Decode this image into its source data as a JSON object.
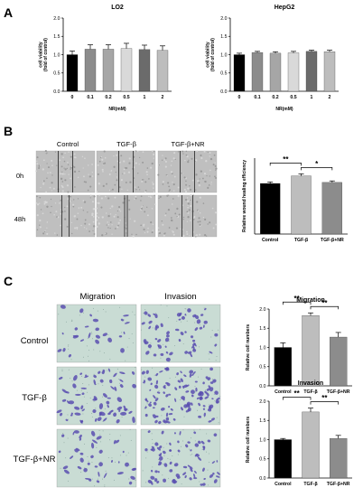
{
  "figure": {
    "panels": [
      {
        "letter": "A"
      },
      {
        "letter": "B",
        "column_headers": [
          "Control",
          "TGF-β",
          "TGF-β+NR"
        ],
        "row_labels": [
          "0h",
          "48h"
        ]
      },
      {
        "letter": "C",
        "column_headers": [
          "Migration",
          "Invasion"
        ],
        "row_labels": [
          "Control",
          "TGF-β",
          "TGF-β+NR"
        ]
      }
    ],
    "colors": {
      "black": "#000000",
      "light_gray": "#bdbdbd",
      "mid_gray": "#8c8c8c",
      "dark_gray": "#6b6b6b",
      "lighter_gray": "#d9d9d9",
      "silver": "#a6a6a6",
      "stain_bg": "#c9dcd4",
      "stain_cell": "#5a4fb0",
      "wound_bg": "#bfbfbf"
    }
  },
  "chart_data": [
    {
      "id": "lo2",
      "type": "bar",
      "title": "LO2",
      "xlabel": "NR(mM)",
      "ylabel": "cell viability (fold of control)",
      "categories": [
        "0",
        "0.1",
        "0.2",
        "0.5",
        "1",
        "2"
      ],
      "values": [
        1.0,
        1.15,
        1.15,
        1.17,
        1.14,
        1.12
      ],
      "errors": [
        0.1,
        0.12,
        0.12,
        0.14,
        0.12,
        0.12
      ],
      "ylim": [
        0,
        2.0
      ],
      "yticks": [
        "0.0",
        "0.5",
        "1.0",
        "1.5",
        "2.0"
      ],
      "colors": [
        "#000000",
        "#8c8c8c",
        "#a6a6a6",
        "#d9d9d9",
        "#6b6b6b",
        "#bdbdbd"
      ],
      "significance": []
    },
    {
      "id": "hepg2",
      "type": "bar",
      "title": "HepG2",
      "xlabel": "NR(mM)",
      "ylabel": "cell viability (fold of control)",
      "categories": [
        "0",
        "0.1",
        "0.2",
        "0.5",
        "1",
        "2"
      ],
      "values": [
        1.0,
        1.06,
        1.04,
        1.05,
        1.09,
        1.08
      ],
      "errors": [
        0.04,
        0.03,
        0.04,
        0.04,
        0.03,
        0.04
      ],
      "ylim": [
        0,
        2.0
      ],
      "yticks": [
        "0.0",
        "0.5",
        "1.0",
        "1.5",
        "2.0"
      ],
      "colors": [
        "#000000",
        "#8c8c8c",
        "#a6a6a6",
        "#d9d9d9",
        "#6b6b6b",
        "#bdbdbd"
      ],
      "significance": []
    },
    {
      "id": "wound",
      "type": "bar",
      "title": "",
      "xlabel": "",
      "ylabel": "Relative wound healing efficiency",
      "categories": [
        "Control",
        "TGF-β",
        "TGF-β+NR"
      ],
      "values": [
        1.0,
        1.15,
        1.02
      ],
      "errors": [
        0.03,
        0.04,
        0.03
      ],
      "ylim": [
        0,
        1.5
      ],
      "yticks": [],
      "colors": [
        "#000000",
        "#bdbdbd",
        "#8c8c8c"
      ],
      "significance": [
        {
          "from": 0,
          "to": 1,
          "label": "**"
        },
        {
          "from": 1,
          "to": 2,
          "label": "*"
        }
      ]
    },
    {
      "id": "migration",
      "type": "bar",
      "title": "Migration",
      "xlabel": "",
      "ylabel": "Relative cell numbers",
      "categories": [
        "Control",
        "TGF-β",
        "TGF-β+NR"
      ],
      "values": [
        1.0,
        1.83,
        1.27
      ],
      "errors": [
        0.12,
        0.07,
        0.12
      ],
      "ylim": [
        0,
        2.0
      ],
      "yticks": [
        "0.0",
        "0.5",
        "1.0",
        "1.5",
        "2.0"
      ],
      "colors": [
        "#000000",
        "#bdbdbd",
        "#8c8c8c"
      ],
      "significance": [
        {
          "from": 0,
          "to": 1,
          "label": "**"
        },
        {
          "from": 1,
          "to": 2,
          "label": "**"
        }
      ]
    },
    {
      "id": "invasion",
      "type": "bar",
      "title": "Invasion",
      "xlabel": "",
      "ylabel": "Relative cell numbers",
      "categories": [
        "Control",
        "TGF-β",
        "TGF-β+NR"
      ],
      "values": [
        1.0,
        1.72,
        1.03
      ],
      "errors": [
        0.03,
        0.1,
        0.08
      ],
      "ylim": [
        0,
        2.0
      ],
      "yticks": [
        "0.0",
        "0.5",
        "1.0",
        "1.5",
        "2.0"
      ],
      "colors": [
        "#000000",
        "#bdbdbd",
        "#8c8c8c"
      ],
      "significance": [
        {
          "from": 0,
          "to": 1,
          "label": "**"
        },
        {
          "from": 1,
          "to": 2,
          "label": "**"
        }
      ]
    }
  ]
}
